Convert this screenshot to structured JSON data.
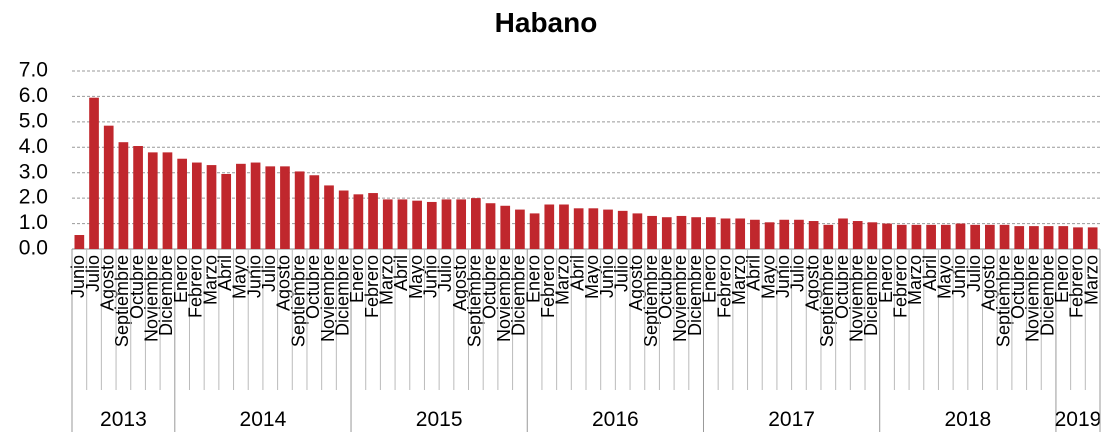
{
  "chart_data": {
    "type": "bar",
    "title": "Habano",
    "color": "#c0272d",
    "grid": true,
    "ylim": [
      0,
      7
    ],
    "yticks": [
      {
        "value": 0,
        "label": "0.0"
      },
      {
        "value": 1,
        "label": "1.0"
      },
      {
        "value": 2,
        "label": "2.0"
      },
      {
        "value": 3,
        "label": "3.0"
      },
      {
        "value": 4,
        "label": "4.0"
      },
      {
        "value": 5,
        "label": "5.0"
      },
      {
        "value": 6,
        "label": "6.0"
      },
      {
        "value": 7,
        "label": "7.0"
      }
    ],
    "groups": [
      {
        "label": "2013",
        "categories": [
          "Junio",
          "Julio",
          "Agosto",
          "Septiembre",
          "Octubre",
          "Noviembre",
          "Diciembre"
        ]
      },
      {
        "label": "2014",
        "categories": [
          "Enero",
          "Febrero",
          "Marzo",
          "Abril",
          "Mayo",
          "Junio",
          "Julio",
          "Agosto",
          "Septiembre",
          "Octubre",
          "Noviembre",
          "Diciembre"
        ]
      },
      {
        "label": "2015",
        "categories": [
          "Enero",
          "Febrero",
          "Marzo",
          "Abril",
          "Mayo",
          "Junio",
          "Julio",
          "Agosto",
          "Septiembre",
          "Octubre",
          "Noviembre",
          "Diciembre"
        ]
      },
      {
        "label": "2016",
        "categories": [
          "Enero",
          "Febrero",
          "Marzo",
          "Abril",
          "Mayo",
          "Junio",
          "Julio",
          "Agosto",
          "Septiembre",
          "Octubre",
          "Noviembre",
          "Diciembre"
        ]
      },
      {
        "label": "2017",
        "categories": [
          "Enero",
          "Febrero",
          "Marzo",
          "Abril",
          "Mayo",
          "Junio",
          "Julio",
          "Agosto",
          "Septiembre",
          "Octubre",
          "Noviembre",
          "Diciembre"
        ]
      },
      {
        "label": "2018",
        "categories": [
          "Enero",
          "Febrero",
          "Marzo",
          "Abril",
          "Mayo",
          "Junio",
          "Julio",
          "Agosto",
          "Septiembre",
          "Octubre",
          "Noviembre",
          "Diciembre"
        ]
      },
      {
        "label": "2019",
        "categories": [
          "Enero",
          "Febrero",
          "Marzo"
        ]
      }
    ],
    "values": [
      0.55,
      5.95,
      4.85,
      4.2,
      4.05,
      3.8,
      3.8,
      3.55,
      3.4,
      3.3,
      2.95,
      3.35,
      3.4,
      3.25,
      3.25,
      3.05,
      2.9,
      2.5,
      2.3,
      2.15,
      2.2,
      1.95,
      1.95,
      1.9,
      1.85,
      1.95,
      1.95,
      2.0,
      1.8,
      1.7,
      1.55,
      1.4,
      1.75,
      1.75,
      1.6,
      1.6,
      1.55,
      1.5,
      1.4,
      1.3,
      1.25,
      1.3,
      1.25,
      1.25,
      1.2,
      1.2,
      1.15,
      1.05,
      1.15,
      1.15,
      1.1,
      0.95,
      1.2,
      1.1,
      1.05,
      1.0,
      0.95,
      0.95,
      0.95,
      0.95,
      1.0,
      0.95,
      0.95,
      0.95,
      0.9,
      0.9,
      0.9,
      0.9,
      0.85,
      0.85
    ]
  }
}
